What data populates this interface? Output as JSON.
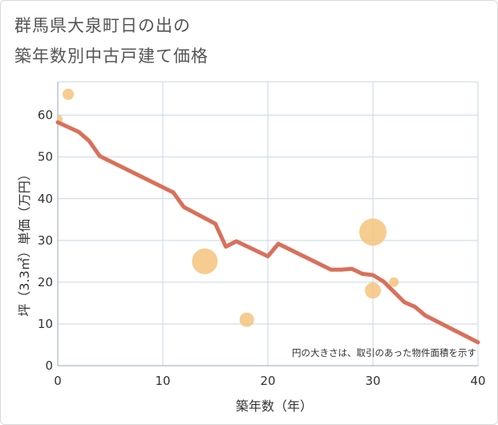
{
  "title_line1": "群馬県大泉町日の出の",
  "title_line2": "築年数別中古戸建て価格",
  "chart_data": {
    "type": "scatter",
    "title": "群馬県大泉町日の出の築年数別中古戸建て価格",
    "xlabel": "築年数（年）",
    "ylabel": "坪（3.3㎡）単価（万円）",
    "xlim": [
      0,
      40
    ],
    "ylim": [
      0,
      68
    ],
    "xticks": [
      0,
      10,
      20,
      30,
      40
    ],
    "yticks": [
      0,
      10,
      20,
      30,
      40,
      50,
      60
    ],
    "grid": true,
    "annotation": "円の大きさは、取引のあった物件面積を示す",
    "colors": {
      "points": "#f5c37c",
      "trend": "#d9705a",
      "grid": "#c8d6e6"
    },
    "points": [
      {
        "x": 0,
        "y": 59,
        "size": 6
      },
      {
        "x": 1,
        "y": 65,
        "size": 7
      },
      {
        "x": 14,
        "y": 25,
        "size": 16
      },
      {
        "x": 18,
        "y": 11,
        "size": 9
      },
      {
        "x": 30,
        "y": 32,
        "size": 17
      },
      {
        "x": 30,
        "y": 18,
        "size": 10
      },
      {
        "x": 32,
        "y": 20,
        "size": 6
      }
    ],
    "trend": {
      "x": [
        0,
        2,
        3,
        4,
        11,
        12,
        15,
        16,
        17,
        20,
        21,
        26,
        27,
        28,
        29,
        30,
        31,
        32,
        33,
        34,
        35,
        40
      ],
      "y": [
        58.3,
        56,
        53.8,
        50.2,
        41.5,
        38,
        34,
        28.5,
        29.8,
        26.2,
        29.2,
        23,
        23,
        23.2,
        22,
        21.7,
        20.2,
        17.7,
        15.2,
        14.1,
        12,
        5.6
      ]
    }
  }
}
